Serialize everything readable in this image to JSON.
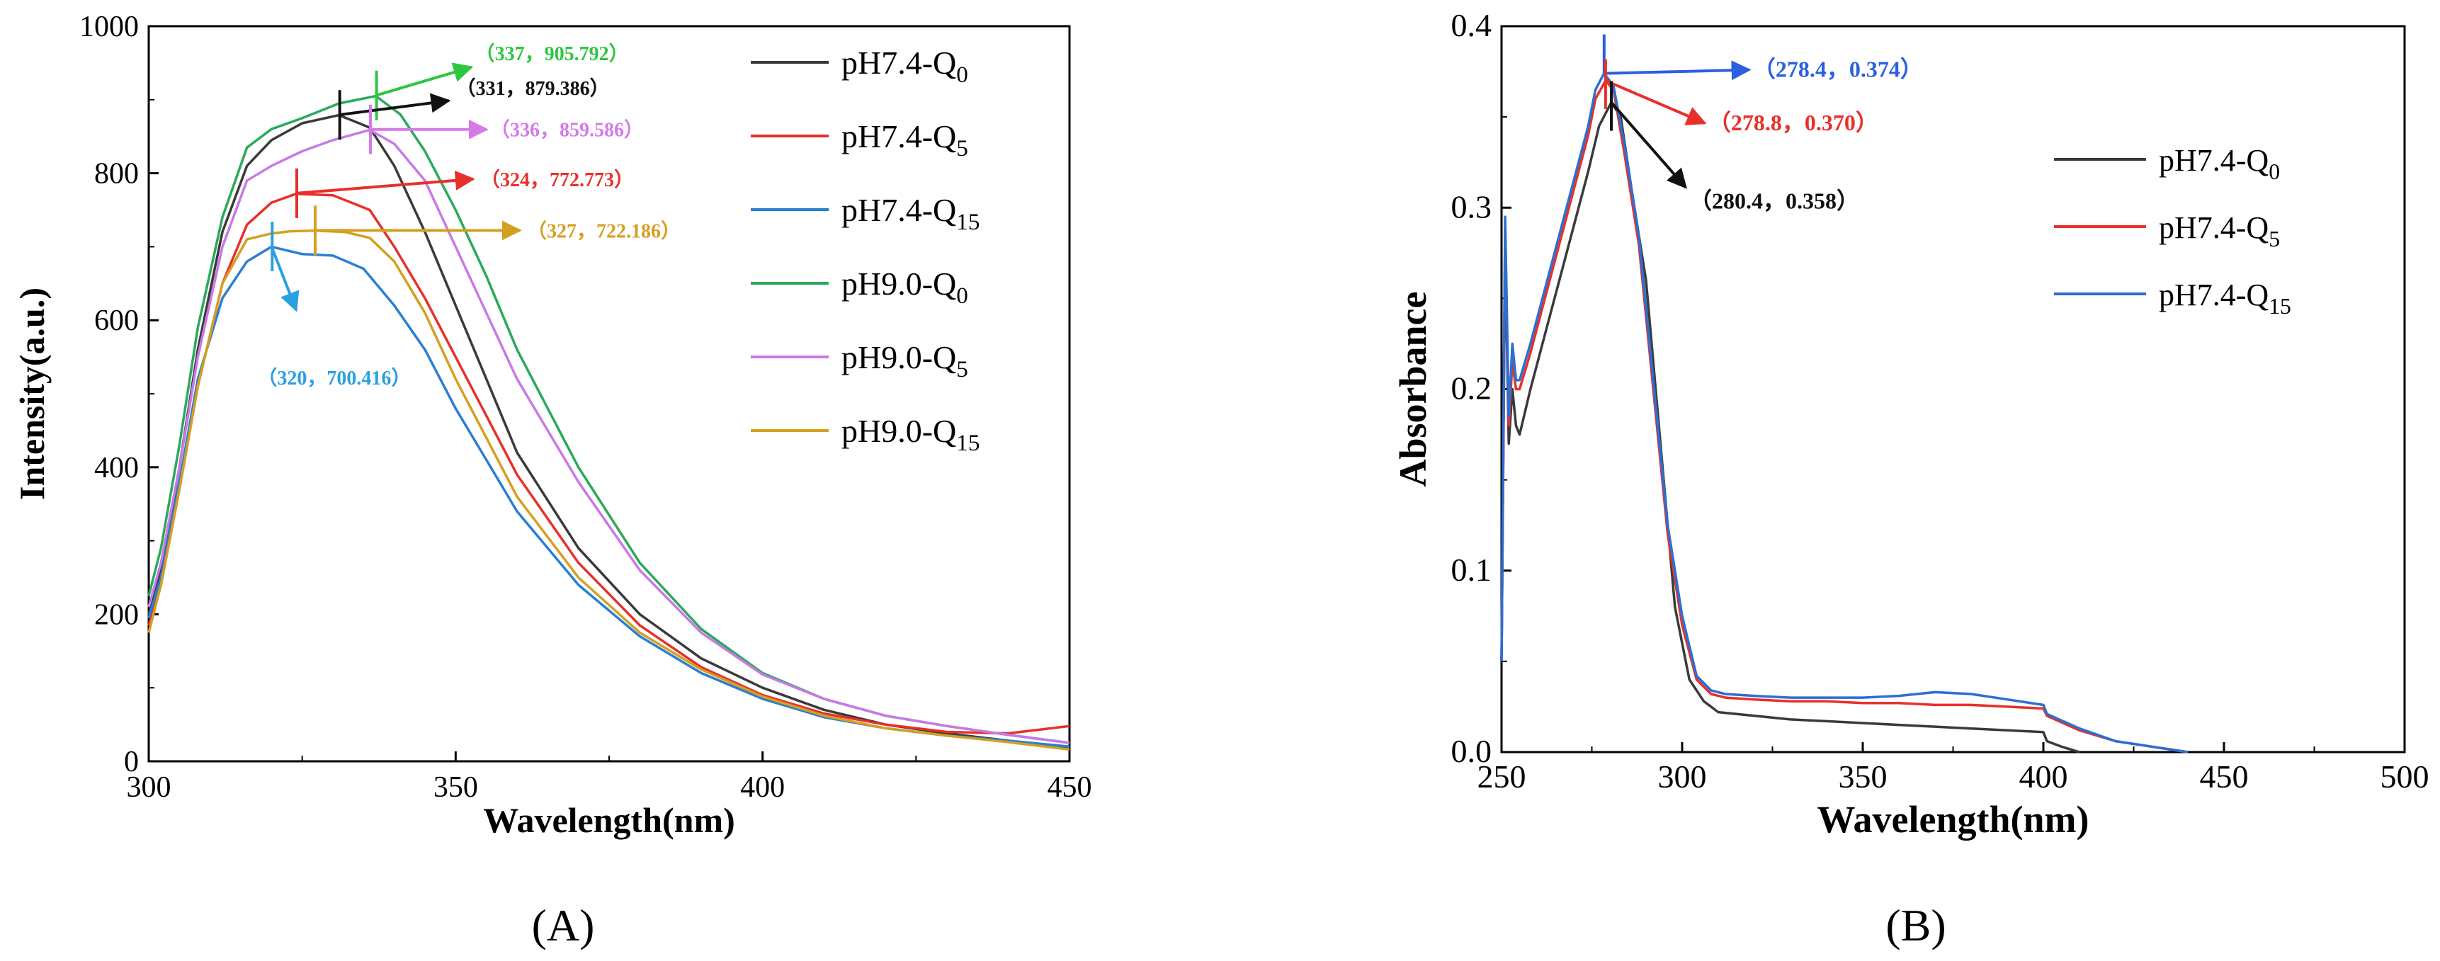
{
  "chart_data": [
    {
      "panel": "A",
      "type": "line",
      "panel_label": "(A)",
      "xlabel": "Wavelength(nm)",
      "ylabel": "Intensity(a.u.)",
      "xlim": [
        300,
        450
      ],
      "ylim": [
        0,
        1000
      ],
      "xticks": [
        300,
        350,
        400,
        450
      ],
      "yticks": [
        0,
        200,
        400,
        600,
        800,
        1000
      ],
      "legend_position": "top-right",
      "series": [
        {
          "name": "pH7.4-Q",
          "sub": "0",
          "color": "#3a3a3a",
          "x": [
            300,
            302,
            305,
            308,
            312,
            316,
            320,
            325,
            331,
            336,
            340,
            345,
            350,
            355,
            360,
            370,
            380,
            390,
            400,
            410,
            420,
            430,
            440,
            450
          ],
          "y": [
            200,
            260,
            400,
            560,
            720,
            810,
            845,
            868,
            879,
            862,
            810,
            720,
            620,
            520,
            420,
            290,
            200,
            140,
            100,
            70,
            50,
            38,
            28,
            18
          ]
        },
        {
          "name": "pH7.4-Q",
          "sub": "5",
          "color": "#e8302a",
          "x": [
            300,
            302,
            305,
            308,
            312,
            316,
            320,
            324,
            330,
            336,
            340,
            345,
            350,
            355,
            360,
            370,
            380,
            390,
            400,
            410,
            420,
            430,
            440,
            450
          ],
          "y": [
            185,
            240,
            370,
            510,
            650,
            730,
            760,
            772,
            770,
            750,
            700,
            630,
            550,
            470,
            390,
            270,
            185,
            128,
            90,
            65,
            50,
            40,
            38,
            48
          ]
        },
        {
          "name": "pH7.4-Q",
          "sub": "15",
          "color": "#2a7fd4",
          "x": [
            300,
            302,
            305,
            308,
            312,
            316,
            320,
            325,
            330,
            335,
            340,
            345,
            350,
            355,
            360,
            370,
            380,
            390,
            400,
            410,
            420,
            430,
            440,
            450
          ],
          "y": [
            195,
            250,
            380,
            520,
            630,
            680,
            700,
            690,
            688,
            670,
            620,
            560,
            480,
            410,
            340,
            240,
            170,
            120,
            85,
            60,
            45,
            35,
            28,
            20
          ]
        },
        {
          "name": "pH9.0-Q",
          "sub": "0",
          "color": "#2aaa5a",
          "x": [
            300,
            302,
            305,
            308,
            312,
            316,
            320,
            325,
            331,
            337,
            341,
            345,
            350,
            355,
            360,
            370,
            380,
            390,
            400,
            410,
            420,
            430,
            440,
            450
          ],
          "y": [
            225,
            290,
            430,
            590,
            740,
            835,
            860,
            875,
            895,
            905,
            880,
            830,
            750,
            660,
            560,
            400,
            270,
            180,
            120,
            85,
            62,
            48,
            36,
            25
          ]
        },
        {
          "name": "pH9.0-Q",
          "sub": "5",
          "color": "#c879e6",
          "x": [
            300,
            302,
            305,
            308,
            312,
            316,
            320,
            325,
            330,
            336,
            340,
            345,
            350,
            355,
            360,
            370,
            380,
            390,
            400,
            410,
            420,
            430,
            440,
            450
          ],
          "y": [
            210,
            270,
            400,
            550,
            700,
            790,
            810,
            830,
            845,
            859,
            840,
            790,
            700,
            610,
            520,
            380,
            260,
            175,
            118,
            85,
            62,
            48,
            36,
            25
          ]
        },
        {
          "name": "pH9.0-Q",
          "sub": "15",
          "color": "#d4a020",
          "x": [
            300,
            302,
            305,
            308,
            312,
            316,
            320,
            323,
            327,
            332,
            336,
            340,
            345,
            350,
            355,
            360,
            370,
            380,
            390,
            400,
            410,
            420,
            430,
            440,
            450
          ],
          "y": [
            175,
            240,
            370,
            510,
            650,
            710,
            718,
            721,
            722,
            720,
            712,
            680,
            610,
            520,
            440,
            360,
            250,
            175,
            125,
            88,
            62,
            45,
            35,
            26,
            16
          ]
        }
      ],
      "annotations": [
        {
          "text": "（337，905.792）",
          "color": "#2cc640",
          "x": 337,
          "y": 905.792
        },
        {
          "text": "（331，879.386）",
          "color": "#111111",
          "x": 331,
          "y": 879.386
        },
        {
          "text": "（336，859.586）",
          "color": "#d67ae8",
          "x": 336,
          "y": 859.586
        },
        {
          "text": "（324，772.773）",
          "color": "#e8302a",
          "x": 324,
          "y": 772.773
        },
        {
          "text": "（327，722.186）",
          "color": "#d4a020",
          "x": 327,
          "y": 722.186
        },
        {
          "text": "（320，700.416）",
          "color": "#2aa0e0",
          "x": 320,
          "y": 700.416
        }
      ]
    },
    {
      "panel": "B",
      "type": "line",
      "panel_label": "(B)",
      "xlabel": "Wavelength(nm)",
      "ylabel": "Absorbance",
      "xlim": [
        250,
        500
      ],
      "ylim": [
        0,
        0.4
      ],
      "xticks": [
        250,
        300,
        350,
        400,
        450,
        500
      ],
      "yticks": [
        "0.0",
        "0.1",
        "0.2",
        "0.3",
        "0.4"
      ],
      "legend_position": "right",
      "series": [
        {
          "name": "pH7.4-Q",
          "sub": "0",
          "color": "#3a3a3a",
          "x": [
            250,
            251,
            252,
            253,
            254,
            255,
            258,
            262,
            266,
            270,
            274,
            277,
            280.4,
            283,
            286,
            290,
            294,
            298,
            302,
            306,
            310,
            320,
            330,
            340,
            350,
            360,
            370,
            380,
            390,
            400,
            401,
            405,
            410
          ],
          "y": [
            0.05,
            0.28,
            0.17,
            0.2,
            0.18,
            0.175,
            0.2,
            0.23,
            0.26,
            0.29,
            0.32,
            0.345,
            0.358,
            0.35,
            0.31,
            0.26,
            0.17,
            0.08,
            0.04,
            0.028,
            0.022,
            0.02,
            0.018,
            0.017,
            0.016,
            0.015,
            0.014,
            0.013,
            0.012,
            0.011,
            0.006,
            0.003,
            0.0
          ]
        },
        {
          "name": "pH7.4-Q",
          "sub": "5",
          "color": "#e8302a",
          "x": [
            250,
            251,
            252,
            253,
            254,
            255,
            258,
            262,
            266,
            270,
            274,
            276,
            278.8,
            281,
            284,
            288,
            292,
            296,
            300,
            304,
            308,
            312,
            320,
            330,
            340,
            350,
            360,
            370,
            380,
            390,
            400,
            401,
            410,
            420,
            430,
            440
          ],
          "y": [
            0.05,
            0.29,
            0.18,
            0.215,
            0.2,
            0.2,
            0.22,
            0.25,
            0.28,
            0.31,
            0.34,
            0.36,
            0.37,
            0.365,
            0.33,
            0.28,
            0.2,
            0.12,
            0.07,
            0.04,
            0.032,
            0.03,
            0.029,
            0.028,
            0.028,
            0.027,
            0.027,
            0.026,
            0.026,
            0.025,
            0.024,
            0.02,
            0.012,
            0.006,
            0.003,
            0.0
          ]
        },
        {
          "name": "pH7.4-Q",
          "sub": "15",
          "color": "#2a6fd4",
          "x": [
            250,
            251,
            252,
            253,
            254,
            255,
            258,
            262,
            266,
            270,
            274,
            276,
            278.4,
            281,
            284,
            288,
            292,
            296,
            300,
            304,
            308,
            312,
            320,
            330,
            340,
            350,
            360,
            370,
            380,
            390,
            400,
            401,
            410,
            420,
            430,
            440
          ],
          "y": [
            0.05,
            0.295,
            0.185,
            0.225,
            0.205,
            0.205,
            0.225,
            0.255,
            0.285,
            0.315,
            0.345,
            0.365,
            0.374,
            0.367,
            0.335,
            0.285,
            0.205,
            0.125,
            0.075,
            0.042,
            0.034,
            0.032,
            0.031,
            0.03,
            0.03,
            0.03,
            0.031,
            0.033,
            0.032,
            0.029,
            0.026,
            0.021,
            0.013,
            0.006,
            0.003,
            0.0
          ]
        }
      ],
      "annotations": [
        {
          "text": "（278.4，0.374）",
          "color": "#2a5fe0",
          "x": 278.4,
          "y": 0.374
        },
        {
          "text": "（278.8，0.370）",
          "color": "#e8302a",
          "x": 278.8,
          "y": 0.37
        },
        {
          "text": "（280.4，0.358）",
          "color": "#111111",
          "x": 280.4,
          "y": 0.358
        }
      ]
    }
  ]
}
